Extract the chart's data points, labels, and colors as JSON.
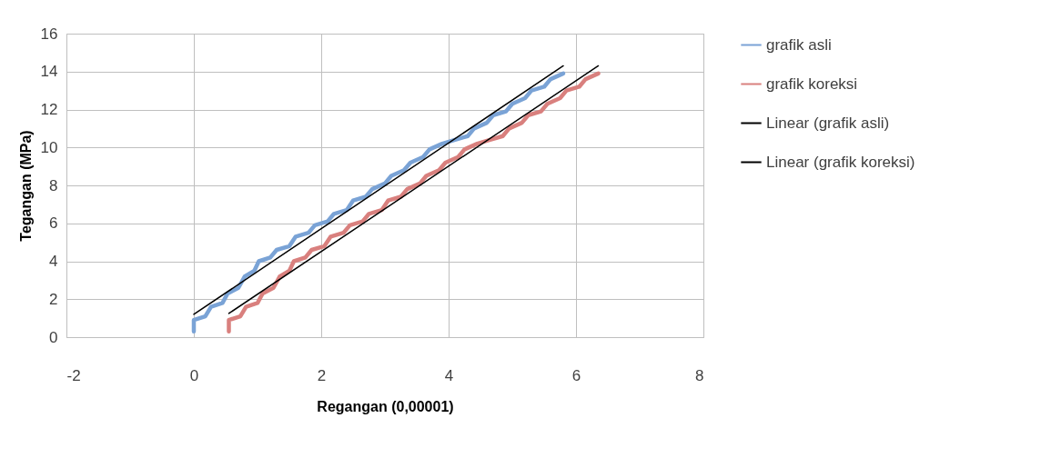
{
  "chart_data": {
    "type": "line",
    "xlabel": "Regangan (0,00001)",
    "ylabel": "Tegangan (MPa)",
    "xlim": [
      -2,
      8
    ],
    "xticks": [
      -2,
      0,
      2,
      4,
      6,
      8
    ],
    "ylim": [
      0,
      16
    ],
    "yticks": [
      0,
      2,
      4,
      6,
      8,
      10,
      12,
      14,
      16
    ],
    "grid": true,
    "legend": "right",
    "marker": "none",
    "line_style": "solid",
    "series": [
      {
        "name": "grafik asli",
        "color": "#7aa3d6",
        "x": [
          0,
          0,
          0.18,
          0.27,
          0.45,
          0.53,
          0.7,
          0.8,
          0.95,
          1.02,
          1.2,
          1.3,
          1.5,
          1.6,
          1.8,
          1.9,
          2.1,
          2.2,
          2.4,
          2.5,
          2.7,
          2.8,
          3.0,
          3.1,
          3.3,
          3.4,
          3.6,
          3.7,
          3.9,
          4.1,
          4.3,
          4.4,
          4.6,
          4.7,
          4.9,
          5.0,
          5.2,
          5.3,
          5.5,
          5.6,
          5.8
        ],
        "values": [
          0.3,
          0.9,
          1.1,
          1.6,
          1.8,
          2.3,
          2.6,
          3.2,
          3.5,
          4.0,
          4.2,
          4.6,
          4.8,
          5.3,
          5.5,
          5.9,
          6.1,
          6.5,
          6.7,
          7.2,
          7.4,
          7.8,
          8.1,
          8.5,
          8.8,
          9.2,
          9.5,
          9.9,
          10.2,
          10.4,
          10.6,
          11.0,
          11.3,
          11.7,
          11.9,
          12.3,
          12.6,
          13.0,
          13.2,
          13.6,
          13.9
        ]
      },
      {
        "name": "grafik koreksi",
        "color": "#d9807e",
        "x": [
          0.55,
          0.55,
          0.73,
          0.82,
          1.0,
          1.08,
          1.25,
          1.35,
          1.5,
          1.57,
          1.75,
          1.85,
          2.05,
          2.15,
          2.35,
          2.45,
          2.65,
          2.75,
          2.95,
          3.05,
          3.25,
          3.35,
          3.55,
          3.65,
          3.85,
          3.95,
          4.15,
          4.25,
          4.45,
          4.65,
          4.85,
          4.95,
          5.15,
          5.25,
          5.45,
          5.55,
          5.75,
          5.85,
          6.05,
          6.15,
          6.35
        ],
        "values": [
          0.3,
          0.9,
          1.1,
          1.6,
          1.8,
          2.3,
          2.6,
          3.2,
          3.5,
          4.0,
          4.2,
          4.6,
          4.8,
          5.3,
          5.5,
          5.9,
          6.1,
          6.5,
          6.7,
          7.2,
          7.4,
          7.8,
          8.1,
          8.5,
          8.8,
          9.2,
          9.5,
          9.9,
          10.2,
          10.4,
          10.6,
          11.0,
          11.3,
          11.7,
          11.9,
          12.3,
          12.6,
          13.0,
          13.2,
          13.6,
          13.9
        ]
      },
      {
        "name": "Linear (grafik asli)",
        "color": "#000000",
        "x": [
          0,
          5.8
        ],
        "values": [
          1.2,
          14.3
        ]
      },
      {
        "name": "Linear (grafik koreksi)",
        "color": "#000000",
        "x": [
          0.55,
          6.35
        ],
        "values": [
          1.25,
          14.3
        ]
      }
    ]
  }
}
